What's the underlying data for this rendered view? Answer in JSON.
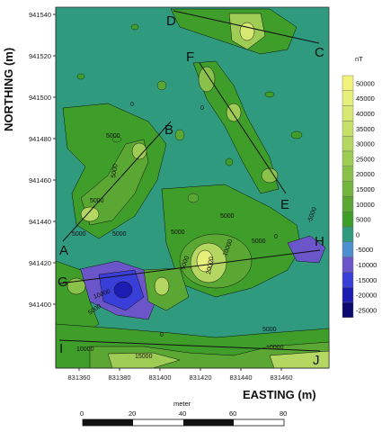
{
  "chart_data": {
    "type": "contour",
    "xlabel": "EASTING (m)",
    "ylabel": "NORTHING (m)",
    "x_ticks": [
      "831360",
      "831380",
      "831400",
      "831420",
      "831440",
      "831460"
    ],
    "y_ticks": [
      "941540",
      "941520",
      "941500",
      "941480",
      "941460",
      "941440",
      "941420",
      "941400"
    ],
    "colorbar": {
      "unit": "nT",
      "levels": [
        "50000",
        "45000",
        "40000",
        "35000",
        "30000",
        "25000",
        "20000",
        "15000",
        "10000",
        "5000",
        "0",
        "-5000",
        "-10000",
        "-15000",
        "-20000",
        "-25000"
      ],
      "colors": [
        "#f2f27a",
        "#e6ef79",
        "#d7e872",
        "#c6e06a",
        "#b3d760",
        "#9fcc55",
        "#89c14a",
        "#72b53e",
        "#5aa833",
        "#3f9e29",
        "#2f9a7e",
        "#4e8fd0",
        "#6a55c9",
        "#3a3ed8",
        "#1c1cb3",
        "#0a0a70"
      ]
    },
    "contour_labels": [
      "5000",
      "5000",
      "5000",
      "5000",
      "5000",
      "5000",
      "5000",
      "5000",
      "5000",
      "10000",
      "20000",
      "10000",
      "5000",
      "10000",
      "15000",
      "5000",
      "10000",
      "-5000",
      "0",
      "0",
      "0",
      "0"
    ],
    "profiles": [
      {
        "from": "A",
        "to": "B"
      },
      {
        "from": "D",
        "to": "C"
      },
      {
        "from": "F",
        "to": "E"
      },
      {
        "from": "G",
        "to": "H"
      },
      {
        "from": "I",
        "to": "J"
      }
    ],
    "scale_bar": {
      "title": "meter",
      "labels": [
        "0",
        "20",
        "40",
        "60",
        "80"
      ]
    }
  }
}
